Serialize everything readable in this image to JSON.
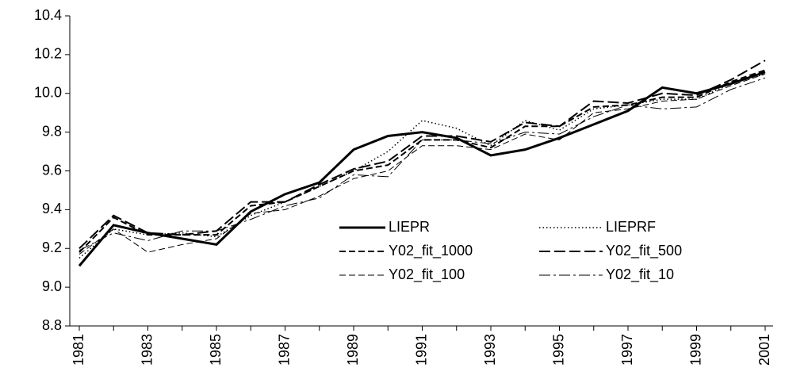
{
  "chart_data": {
    "type": "line",
    "categories": [
      "1981",
      null,
      "1983",
      null,
      "1985",
      null,
      "1987",
      null,
      "1989",
      null,
      "1991",
      null,
      "1993",
      null,
      "1995",
      null,
      "1997",
      null,
      "1999",
      null,
      "2001"
    ],
    "series": [
      {
        "name": "LIEPR",
        "color": "#000000",
        "width": 3,
        "dash": "none",
        "values": [
          9.11,
          9.32,
          9.28,
          9.25,
          9.22,
          9.39,
          9.48,
          9.54,
          9.71,
          9.78,
          9.8,
          9.77,
          9.68,
          9.71,
          9.77,
          9.84,
          9.91,
          10.03,
          10.0,
          10.05,
          10.11
        ]
      },
      {
        "name": "LIEPRF",
        "color": "#000000",
        "width": 1.5,
        "dash": "1.5,3",
        "values": [
          9.15,
          9.3,
          9.27,
          9.28,
          9.26,
          9.37,
          9.44,
          9.52,
          9.6,
          9.7,
          9.86,
          9.82,
          9.73,
          9.86,
          9.81,
          9.92,
          9.94,
          9.97,
          9.97,
          10.05,
          10.1
        ]
      },
      {
        "name": "Y02_fit_1000",
        "color": "#000000",
        "width": 2,
        "dash": "8,4",
        "values": [
          9.18,
          9.36,
          9.27,
          9.27,
          9.27,
          9.42,
          9.44,
          9.52,
          9.6,
          9.63,
          9.76,
          9.76,
          9.72,
          9.83,
          9.83,
          9.93,
          9.94,
          9.98,
          9.98,
          10.06,
          10.12
        ]
      },
      {
        "name": "Y02_fit_500",
        "color": "#000000",
        "width": 2,
        "dash": "14,5",
        "values": [
          9.2,
          9.37,
          9.28,
          9.27,
          9.29,
          9.44,
          9.44,
          9.53,
          9.61,
          9.65,
          9.78,
          9.78,
          9.75,
          9.85,
          9.83,
          9.96,
          9.95,
          10.0,
          9.99,
          10.07,
          10.17
        ]
      },
      {
        "name": "Y02_fit_100",
        "color": "#000000",
        "width": 1,
        "dash": "8,4",
        "values": [
          9.17,
          9.3,
          9.18,
          9.22,
          9.25,
          9.38,
          9.4,
          9.47,
          9.56,
          9.6,
          9.73,
          9.73,
          9.71,
          9.79,
          9.76,
          9.9,
          9.92,
          9.96,
          9.97,
          10.04,
          10.1
        ]
      },
      {
        "name": "Y02_fit_10",
        "color": "#000000",
        "width": 1,
        "dash": "14,4,3,4",
        "values": [
          9.19,
          9.28,
          9.24,
          9.29,
          9.29,
          9.35,
          9.42,
          9.46,
          9.58,
          9.57,
          9.76,
          9.76,
          9.74,
          9.8,
          9.79,
          9.88,
          9.94,
          9.92,
          9.93,
          10.02,
          10.08
        ]
      }
    ],
    "ylim": [
      8.8,
      10.4
    ],
    "yticks": [
      8.8,
      {
        "value": 9,
        "label": "9.0"
      },
      9.2,
      9.4,
      9.6,
      9.8,
      {
        "value": 10,
        "label": "10.0"
      },
      10.2,
      10.4
    ],
    "grid": false
  }
}
